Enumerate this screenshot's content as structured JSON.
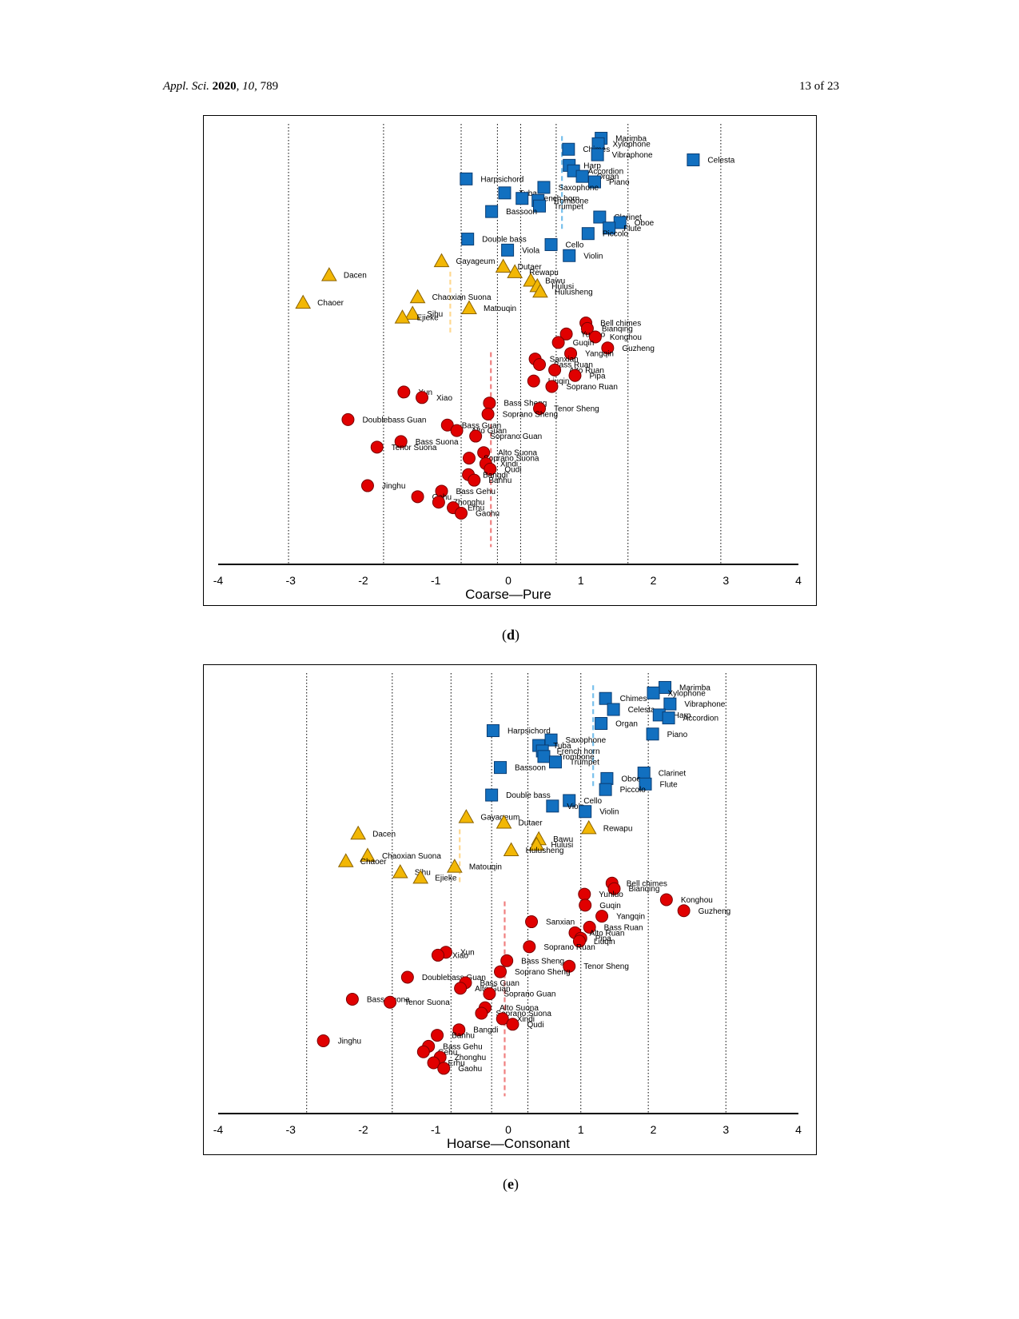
{
  "header": {
    "journal_name": "Appl. Sci.",
    "year": "2020",
    "volume": "10",
    "article": ", 789",
    "page": "13 of 23"
  },
  "captions": {
    "d": "d",
    "e": "e"
  },
  "colors": {
    "western": "#1270c0",
    "western_edge": "#0a3d73",
    "other": "#f2b705",
    "other_edge": "#8a6200",
    "chinese": "#e00000",
    "chinese_edge": "#7a0000",
    "dash_blue": "#78c0ec",
    "dash_orange": "#ffd890",
    "dash_red": "#f08080"
  },
  "chart_data": [
    {
      "id": "d",
      "type": "scatter",
      "xlabel": "Coarse—Pure",
      "xlim": [
        -4,
        4
      ],
      "xticks": [
        "-4",
        "-3",
        "-2",
        "-1",
        "0",
        "1",
        "2",
        "3",
        "4"
      ],
      "ylabel": "",
      "grid": "vertical dotted lines",
      "vlines_dotted": [
        -3.03,
        -1.72,
        -0.65,
        -0.15,
        0.17,
        0.66,
        1.65,
        2.93
      ],
      "group_dashes": [
        {
          "group": "western",
          "x": 0.74,
          "y1": 99,
          "y2": 77
        },
        {
          "group": "other",
          "x": -0.8,
          "y1": 67,
          "y2": 52
        },
        {
          "group": "chinese",
          "x": -0.24,
          "y1": 48,
          "y2": 2
        }
      ],
      "series": [
        {
          "name": "Western instruments",
          "marker": "square",
          "points": [
            {
              "label": "Marimba",
              "x": 1.28,
              "y": 98.5
            },
            {
              "label": "Xylophone",
              "x": 1.24,
              "y": 97.2
            },
            {
              "label": "Chimes",
              "x": 0.83,
              "y": 95.9
            },
            {
              "label": "Vibraphone",
              "x": 1.23,
              "y": 94.6
            },
            {
              "label": "Celesta",
              "x": 2.55,
              "y": 93.4
            },
            {
              "label": "Harp",
              "x": 0.84,
              "y": 92.1
            },
            {
              "label": "Accordion",
              "x": 0.9,
              "y": 90.8
            },
            {
              "label": "Organ",
              "x": 1.02,
              "y": 89.5
            },
            {
              "label": "Piano",
              "x": 1.19,
              "y": 88.2
            },
            {
              "label": "Harpsichord",
              "x": -0.58,
              "y": 88.9
            },
            {
              "label": "Saxophone",
              "x": 0.49,
              "y": 86.9
            },
            {
              "label": "Tuba",
              "x": -0.05,
              "y": 85.6
            },
            {
              "label": "French horn",
              "x": 0.19,
              "y": 84.3
            },
            {
              "label": "Trombone",
              "x": 0.41,
              "y": 83.8
            },
            {
              "label": "Trumpet",
              "x": 0.43,
              "y": 82.5
            },
            {
              "label": "Bassoon",
              "x": -0.23,
              "y": 81.2
            },
            {
              "label": "Clarinet",
              "x": 1.26,
              "y": 79.9
            },
            {
              "label": "Oboe",
              "x": 1.54,
              "y": 78.6
            },
            {
              "label": "Flute",
              "x": 1.39,
              "y": 77.3
            },
            {
              "label": "Piccolo",
              "x": 1.1,
              "y": 76.0
            },
            {
              "label": "Double bass",
              "x": -0.56,
              "y": 74.7
            },
            {
              "label": "Cello",
              "x": 0.59,
              "y": 73.4
            },
            {
              "label": "Viola",
              "x": -0.01,
              "y": 72.1
            },
            {
              "label": "Violin",
              "x": 0.84,
              "y": 70.8
            }
          ]
        },
        {
          "name": "Other ethnic instruments",
          "marker": "triangle",
          "points": [
            {
              "label": "Gayageum",
              "x": -0.92,
              "y": 69.5
            },
            {
              "label": "Dutaer",
              "x": -0.07,
              "y": 68.2
            },
            {
              "label": "Rewapu",
              "x": 0.09,
              "y": 66.9
            },
            {
              "label": "Dacen",
              "x": -2.47,
              "y": 66.2
            },
            {
              "label": "Bawu",
              "x": 0.31,
              "y": 64.9
            },
            {
              "label": "Hulusi",
              "x": 0.4,
              "y": 63.6
            },
            {
              "label": "Hulusheng",
              "x": 0.44,
              "y": 62.3
            },
            {
              "label": "Chaoxian Suona",
              "x": -1.25,
              "y": 61.0
            },
            {
              "label": "Chaoer",
              "x": -2.83,
              "y": 59.7
            },
            {
              "label": "Matouqin",
              "x": -0.54,
              "y": 58.4
            },
            {
              "label": "Sihu",
              "x": -1.32,
              "y": 57.1
            },
            {
              "label": "Ejieke",
              "x": -1.46,
              "y": 56.2
            }
          ]
        },
        {
          "name": "Chinese instruments",
          "marker": "circle",
          "points": [
            {
              "label": "Bell chimes",
              "x": 1.07,
              "y": 54.9
            },
            {
              "label": "Bianqing",
              "x": 1.09,
              "y": 53.6
            },
            {
              "label": "Yunluo",
              "x": 0.8,
              "y": 52.3
            },
            {
              "label": "Konghou",
              "x": 1.2,
              "y": 51.6
            },
            {
              "label": "Guqin",
              "x": 0.69,
              "y": 50.3
            },
            {
              "label": "Guzheng",
              "x": 1.37,
              "y": 49.0
            },
            {
              "label": "Yangqin",
              "x": 0.86,
              "y": 47.7
            },
            {
              "label": "Sanxian",
              "x": 0.37,
              "y": 46.4
            },
            {
              "label": "Bass Ruan",
              "x": 0.43,
              "y": 45.1
            },
            {
              "label": "Alto Ruan",
              "x": 0.64,
              "y": 43.8
            },
            {
              "label": "Pipa",
              "x": 0.92,
              "y": 42.5
            },
            {
              "label": "Liuqin",
              "x": 0.35,
              "y": 41.2
            },
            {
              "label": "Soprano Ruan",
              "x": 0.6,
              "y": 39.9
            },
            {
              "label": "Xun",
              "x": -1.44,
              "y": 38.6
            },
            {
              "label": "Xiao",
              "x": -1.19,
              "y": 37.3
            },
            {
              "label": "Bass Sheng",
              "x": -0.26,
              "y": 36.0
            },
            {
              "label": "Tenor Sheng",
              "x": 0.43,
              "y": 34.7
            },
            {
              "label": "Soprano Sheng",
              "x": -0.28,
              "y": 33.4
            },
            {
              "label": "Doublebass Guan",
              "x": -2.21,
              "y": 32.1
            },
            {
              "label": "Bass Guan",
              "x": -0.84,
              "y": 30.8
            },
            {
              "label": "Alto Guan",
              "x": -0.71,
              "y": 29.5
            },
            {
              "label": "Soprano Guan",
              "x": -0.45,
              "y": 28.2
            },
            {
              "label": "Bass Suona",
              "x": -1.48,
              "y": 26.9
            },
            {
              "label": "Tenor Suona",
              "x": -1.81,
              "y": 25.6
            },
            {
              "label": "Alto Suona",
              "x": -0.34,
              "y": 24.3
            },
            {
              "label": "Soprano Suona",
              "x": -0.54,
              "y": 23.0
            },
            {
              "label": "Xindi",
              "x": -0.31,
              "y": 21.7
            },
            {
              "label": "Qudi",
              "x": -0.25,
              "y": 20.4
            },
            {
              "label": "Bangdi",
              "x": -0.55,
              "y": 19.1
            },
            {
              "label": "Banhu",
              "x": -0.47,
              "y": 17.8
            },
            {
              "label": "Jinghu",
              "x": -1.94,
              "y": 16.5
            },
            {
              "label": "Bass Gehu",
              "x": -0.92,
              "y": 15.2
            },
            {
              "label": "Gehu",
              "x": -1.25,
              "y": 13.9
            },
            {
              "label": "Zhonghu",
              "x": -0.96,
              "y": 12.6
            },
            {
              "label": "Erhu",
              "x": -0.76,
              "y": 11.3
            },
            {
              "label": "Gaohu",
              "x": -0.65,
              "y": 10.0
            }
          ]
        }
      ]
    },
    {
      "id": "e",
      "type": "scatter",
      "xlabel": "Hoarse—Consonant",
      "xlim": [
        -4,
        4
      ],
      "xticks": [
        "-4",
        "-3",
        "-2",
        "-1",
        "0",
        "1",
        "2",
        "3",
        "4"
      ],
      "ylabel": "",
      "grid": "vertical dotted lines",
      "vlines_dotted": [
        -2.78,
        -1.6,
        -0.79,
        -0.23,
        0.27,
        1.0,
        1.93,
        3.0
      ],
      "group_dashes": [
        {
          "group": "western",
          "x": 1.17,
          "y1": 99,
          "y2": 75
        },
        {
          "group": "other",
          "x": -0.67,
          "y1": 65,
          "y2": 52
        },
        {
          "group": "chinese",
          "x": -0.05,
          "y1": 48,
          "y2": 2
        }
      ],
      "series": [
        {
          "name": "Western instruments",
          "marker": "square",
          "points": [
            {
              "label": "Marimba",
              "x": 2.16,
              "y": 98.5
            },
            {
              "label": "Xylophone",
              "x": 2.0,
              "y": 97.2
            },
            {
              "label": "Chimes",
              "x": 1.34,
              "y": 95.9
            },
            {
              "label": "Vibraphone",
              "x": 2.23,
              "y": 94.6
            },
            {
              "label": "Celesta",
              "x": 1.45,
              "y": 93.3
            },
            {
              "label": "Harp",
              "x": 2.08,
              "y": 92.0
            },
            {
              "label": "Accordion",
              "x": 2.21,
              "y": 91.3
            },
            {
              "label": "Organ",
              "x": 1.28,
              "y": 90.0
            },
            {
              "label": "Piano",
              "x": 1.99,
              "y": 87.5
            },
            {
              "label": "Harpsichord",
              "x": -0.21,
              "y": 88.3
            },
            {
              "label": "Saxophone",
              "x": 0.59,
              "y": 86.1
            },
            {
              "label": "Tuba",
              "x": 0.42,
              "y": 84.8
            },
            {
              "label": "French horn",
              "x": 0.47,
              "y": 83.5
            },
            {
              "label": "Trombone",
              "x": 0.49,
              "y": 82.2
            },
            {
              "label": "Trumpet",
              "x": 0.65,
              "y": 80.9
            },
            {
              "label": "Bassoon",
              "x": -0.11,
              "y": 79.6
            },
            {
              "label": "Clarinet",
              "x": 1.87,
              "y": 78.3
            },
            {
              "label": "Oboe",
              "x": 1.36,
              "y": 77.0
            },
            {
              "label": "Flute",
              "x": 1.89,
              "y": 75.7
            },
            {
              "label": "Piccolo",
              "x": 1.34,
              "y": 74.4
            },
            {
              "label": "Double bass",
              "x": -0.23,
              "y": 73.1
            },
            {
              "label": "Cello",
              "x": 0.84,
              "y": 71.8
            },
            {
              "label": "Viola",
              "x": 0.61,
              "y": 70.5
            },
            {
              "label": "Violin",
              "x": 1.06,
              "y": 69.2
            }
          ]
        },
        {
          "name": "Other ethnic instruments",
          "marker": "triangle",
          "points": [
            {
              "label": "Gayageum",
              "x": -0.58,
              "y": 67.9
            },
            {
              "label": "Dutaer",
              "x": -0.06,
              "y": 66.6
            },
            {
              "label": "Rewapu",
              "x": 1.11,
              "y": 65.3
            },
            {
              "label": "Dacen",
              "x": -2.07,
              "y": 64.0
            },
            {
              "label": "Bawu",
              "x": 0.42,
              "y": 62.7
            },
            {
              "label": "Hulusi",
              "x": 0.39,
              "y": 61.4
            },
            {
              "label": "Hulusheng",
              "x": 0.04,
              "y": 60.1
            },
            {
              "label": "Chaoxian Suona",
              "x": -1.94,
              "y": 58.8
            },
            {
              "label": "Chaoer",
              "x": -2.24,
              "y": 57.5
            },
            {
              "label": "Matouqin",
              "x": -0.74,
              "y": 56.2
            },
            {
              "label": "Sihu",
              "x": -1.49,
              "y": 54.9
            },
            {
              "label": "Ejieke",
              "x": -1.21,
              "y": 53.6
            }
          ]
        },
        {
          "name": "Chinese instruments",
          "marker": "circle",
          "points": [
            {
              "label": "Bell chimes",
              "x": 1.43,
              "y": 52.3
            },
            {
              "label": "Bianqing",
              "x": 1.46,
              "y": 51.0
            },
            {
              "label": "Yunluo",
              "x": 1.05,
              "y": 49.7
            },
            {
              "label": "Konghou",
              "x": 2.18,
              "y": 48.4
            },
            {
              "label": "Guqin",
              "x": 1.06,
              "y": 47.1
            },
            {
              "label": "Guzheng",
              "x": 2.42,
              "y": 45.8
            },
            {
              "label": "Yangqin",
              "x": 1.29,
              "y": 44.5
            },
            {
              "label": "Sanxian",
              "x": 0.32,
              "y": 43.2
            },
            {
              "label": "Bass Ruan",
              "x": 1.12,
              "y": 41.9
            },
            {
              "label": "Alto Ruan",
              "x": 0.92,
              "y": 40.6
            },
            {
              "label": "Pipa",
              "x": 1.0,
              "y": 39.3
            },
            {
              "label": "Liuqin",
              "x": 0.98,
              "y": 38.6
            },
            {
              "label": "Soprano Ruan",
              "x": 0.29,
              "y": 37.3
            },
            {
              "label": "Xun",
              "x": -0.86,
              "y": 36.0
            },
            {
              "label": "Xiao",
              "x": -0.97,
              "y": 35.3
            },
            {
              "label": "Bass Sheng",
              "x": -0.02,
              "y": 34.0
            },
            {
              "label": "Tenor Sheng",
              "x": 0.84,
              "y": 32.7
            },
            {
              "label": "Soprano Sheng",
              "x": -0.11,
              "y": 31.4
            },
            {
              "label": "Doublebass Guan",
              "x": -1.39,
              "y": 30.1
            },
            {
              "label": "Bass Guan",
              "x": -0.59,
              "y": 28.8
            },
            {
              "label": "Alto Guan",
              "x": -0.66,
              "y": 27.5
            },
            {
              "label": "Soprano Guan",
              "x": -0.26,
              "y": 26.2
            },
            {
              "label": "Bass Suona",
              "x": -2.15,
              "y": 24.9
            },
            {
              "label": "Tenor Suona",
              "x": -1.63,
              "y": 24.2
            },
            {
              "label": "Alto Suona",
              "x": -0.32,
              "y": 22.9
            },
            {
              "label": "Soprano Suona",
              "x": -0.37,
              "y": 21.6
            },
            {
              "label": "Xindi",
              "x": -0.08,
              "y": 20.3
            },
            {
              "label": "Qudi",
              "x": 0.06,
              "y": 19.0
            },
            {
              "label": "Bangdi",
              "x": -0.68,
              "y": 17.7
            },
            {
              "label": "Banhu",
              "x": -0.98,
              "y": 16.4
            },
            {
              "label": "Jinghu",
              "x": -2.55,
              "y": 15.1
            },
            {
              "label": "Bass Gehu",
              "x": -1.1,
              "y": 13.8
            },
            {
              "label": "Gehu",
              "x": -1.17,
              "y": 12.5
            },
            {
              "label": "Zhonghu",
              "x": -0.94,
              "y": 11.2
            },
            {
              "label": "Erhu",
              "x": -1.03,
              "y": 9.9
            },
            {
              "label": "Gaohu",
              "x": -0.89,
              "y": 8.6
            }
          ]
        }
      ]
    }
  ]
}
